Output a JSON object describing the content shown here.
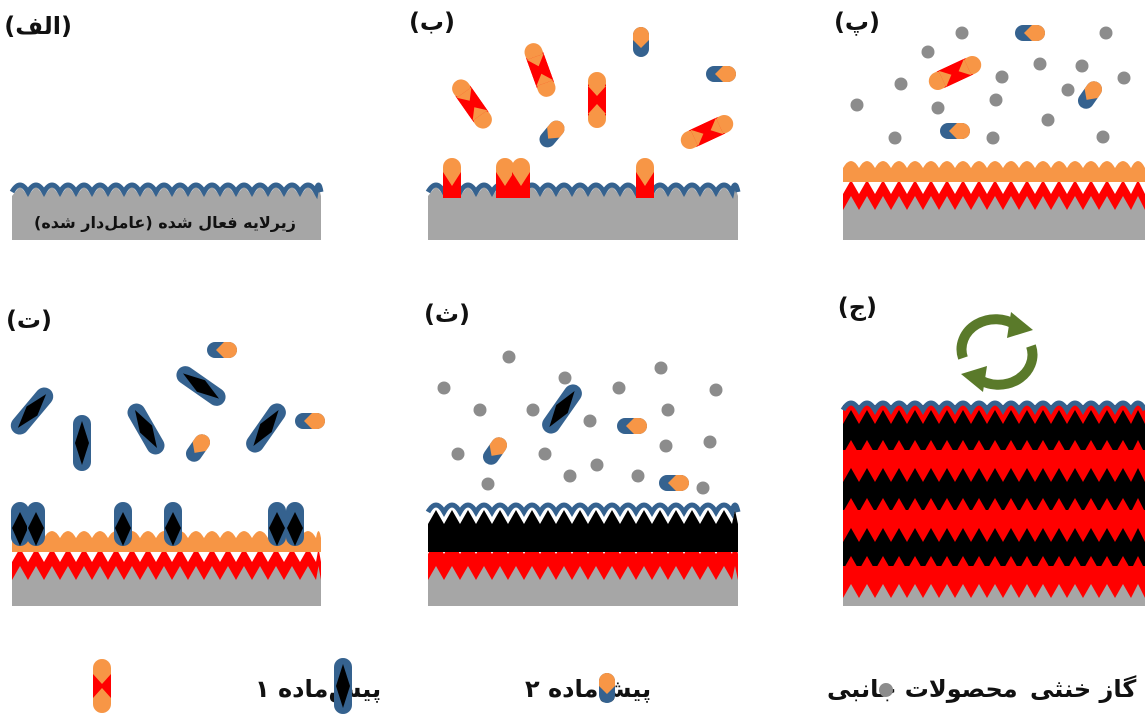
{
  "colors": {
    "substrate": "#a6a6a6",
    "precursor1": "#ff0000",
    "precursor1_tip": "#f79646",
    "precursor2": "#000000",
    "precursor2_tip": "#35628f",
    "inert_gas": "#8c8c8c",
    "cycle_arrow": "#5a7a2a"
  },
  "panels": [
    {
      "id": "alef",
      "label": "(الف)",
      "substrate_text": "زیرلایه فعال شده (عامل‌دار شده)"
    },
    {
      "id": "be",
      "label": "(ب)"
    },
    {
      "id": "pe",
      "label": "(پ)"
    },
    {
      "id": "te",
      "label": "(ت)"
    },
    {
      "id": "se",
      "label": "(ث)"
    },
    {
      "id": "jim",
      "label": "(ج)"
    }
  ],
  "legend": {
    "precursor1": "پیش‌ماده ۱",
    "precursor2": "پیش‌ماده ۲",
    "byproducts": "محصولات جانبی",
    "inert_gas": "گاز خنثی"
  }
}
